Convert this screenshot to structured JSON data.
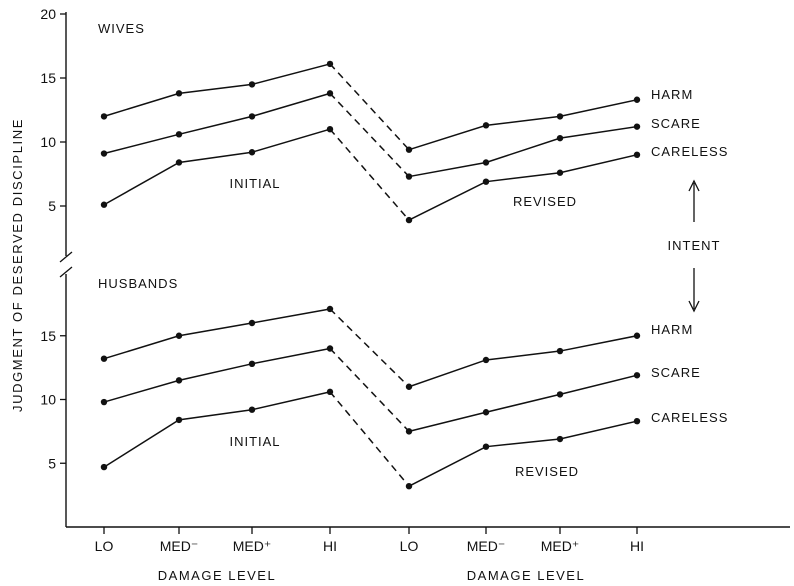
{
  "chart_data": {
    "type": "line",
    "ylabel": "JUDGMENT OF DESERVED DISCIPLINE",
    "xlabels": [
      "DAMAGE LEVEL",
      "DAMAGE LEVEL"
    ],
    "x_categories": [
      "LO",
      "MED⁻",
      "MED⁺",
      "HI",
      "LO",
      "MED⁻",
      "MED⁺",
      "HI"
    ],
    "intent_label": "INTENT",
    "panels": [
      {
        "name": "WIVES",
        "yticks": [
          5,
          10,
          15,
          20
        ],
        "ylim": [
          0,
          20
        ],
        "phase_labels": [
          "INITIAL",
          "REVISED"
        ],
        "series": [
          {
            "name": "HARM",
            "initial": [
              12.0,
              13.8,
              14.5,
              16.1
            ],
            "revised": [
              9.4,
              11.3,
              12.0,
              13.3
            ]
          },
          {
            "name": "SCARE",
            "initial": [
              9.1,
              10.6,
              12.0,
              13.8
            ],
            "revised": [
              7.3,
              8.4,
              10.3,
              11.2
            ]
          },
          {
            "name": "CARELESS",
            "initial": [
              5.1,
              8.4,
              9.2,
              11.0
            ],
            "revised": [
              3.9,
              6.9,
              7.6,
              9.0
            ]
          }
        ]
      },
      {
        "name": "HUSBANDS",
        "yticks": [
          5,
          10,
          15
        ],
        "ylim": [
          0,
          19
        ],
        "phase_labels": [
          "INITIAL",
          "REVISED"
        ],
        "series": [
          {
            "name": "HARM",
            "initial": [
              13.2,
              15.0,
              16.0,
              17.1
            ],
            "revised": [
              11.0,
              13.1,
              13.8,
              15.0
            ]
          },
          {
            "name": "SCARE",
            "initial": [
              9.8,
              11.5,
              12.8,
              14.0
            ],
            "revised": [
              7.5,
              9.0,
              10.4,
              11.9
            ]
          },
          {
            "name": "CARELESS",
            "initial": [
              4.7,
              8.4,
              9.2,
              10.6
            ],
            "revised": [
              3.2,
              6.3,
              6.9,
              8.3
            ]
          }
        ]
      }
    ]
  }
}
